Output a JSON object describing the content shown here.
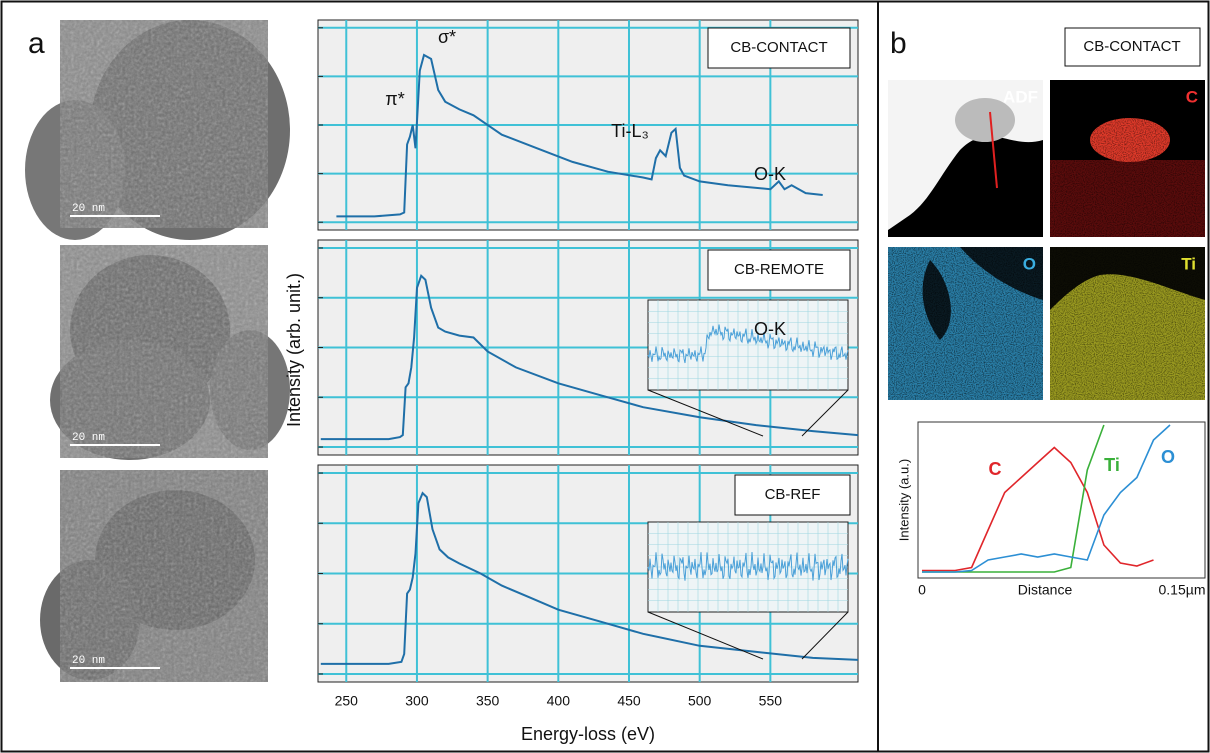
{
  "panel_a": {
    "label": "a",
    "ylabel": "Intensity (arb. unit.)",
    "xlabel": "Energy-loss (eV)",
    "scale_bars": [
      "20 nm",
      "20 nm",
      "20 nm"
    ]
  },
  "panel_b": {
    "label": "b",
    "title": "CB-CONTACT",
    "maps": [
      "ADF",
      "C",
      "O",
      "Ti"
    ]
  },
  "chart_data": [
    {
      "type": "line",
      "label": "CB-CONTACT",
      "color": "#1f6fa8",
      "grid": true,
      "annotations": [
        "π*",
        "σ*",
        "Ti-L₃",
        "O-K"
      ],
      "x": [
        243,
        270,
        288,
        291,
        293,
        295,
        297,
        299,
        302,
        305,
        310,
        315,
        320,
        330,
        340,
        360,
        385,
        410,
        435,
        460,
        466,
        469,
        472,
        476,
        480,
        483,
        486,
        489,
        500,
        520,
        550,
        556,
        560,
        565,
        575,
        587
      ],
      "values": [
        3,
        3,
        4,
        5,
        40,
        44,
        50,
        38,
        78,
        86,
        84,
        68,
        62,
        58,
        55,
        45,
        38,
        31,
        26,
        23,
        22,
        33,
        37,
        34,
        46,
        48,
        28,
        24,
        21,
        19,
        17,
        21,
        17,
        19,
        15,
        14
      ],
      "xlim": [
        230,
        612
      ],
      "xticks": [
        250,
        300,
        350,
        400,
        450,
        500,
        550
      ],
      "ylim": [
        -4,
        104
      ],
      "yticks": [
        0,
        25,
        50,
        75,
        100
      ]
    },
    {
      "type": "line",
      "label": "CB-REMOTE",
      "color": "#1f6fa8",
      "grid": true,
      "inset_label": "O-K",
      "x": [
        232,
        280,
        288,
        290,
        292,
        294,
        296,
        298,
        300,
        303,
        306,
        310,
        315,
        320,
        330,
        340,
        350,
        370,
        400,
        430,
        460,
        500,
        540,
        580,
        612
      ],
      "values": [
        4,
        4,
        5,
        6,
        30,
        32,
        40,
        55,
        80,
        86,
        84,
        70,
        60,
        58,
        56,
        55,
        48,
        40,
        32,
        26,
        20,
        15,
        11,
        8,
        6
      ],
      "xlim": [
        230,
        612
      ],
      "xticks": [
        250,
        300,
        350,
        400,
        450,
        500,
        550
      ],
      "ylim": [
        -4,
        104
      ],
      "yticks": [
        0,
        25,
        50,
        75,
        100
      ]
    },
    {
      "type": "line",
      "label": "CB-REF",
      "color": "#1f6fa8",
      "grid": true,
      "x": [
        232,
        280,
        289,
        291,
        293,
        295,
        297,
        299,
        301,
        304,
        307,
        311,
        316,
        322,
        330,
        345,
        360,
        380,
        400,
        430,
        460,
        500,
        540,
        580,
        612
      ],
      "values": [
        5,
        5,
        6,
        10,
        40,
        42,
        48,
        60,
        85,
        90,
        88,
        72,
        62,
        58,
        55,
        50,
        44,
        38,
        32,
        26,
        20,
        14,
        11,
        8,
        7
      ],
      "xlim": [
        230,
        612
      ],
      "xticks": [
        250,
        300,
        350,
        400,
        450,
        500,
        550
      ],
      "ylim": [
        -4,
        104
      ],
      "yticks": [
        0,
        25,
        50,
        75,
        100
      ]
    },
    {
      "type": "line",
      "xlabel": "Distance",
      "ylabel": "Intensity (a.u.)",
      "x": [
        0,
        0.01,
        0.02,
        0.03,
        0.04,
        0.05,
        0.06,
        0.07,
        0.08,
        0.09,
        0.1,
        0.11,
        0.12,
        0.13,
        0.14,
        0.15
      ],
      "series": [
        {
          "name": "C",
          "color": "#e0262b",
          "values": [
            3,
            3,
            3,
            5,
            30,
            55,
            65,
            75,
            85,
            75,
            55,
            20,
            8,
            6,
            10,
            null
          ]
        },
        {
          "name": "Ti",
          "color": "#3ab03a",
          "values": [
            2,
            2,
            2,
            2,
            2,
            2,
            2,
            2,
            2,
            5,
            70,
            100,
            null,
            null,
            null,
            null
          ]
        },
        {
          "name": "O",
          "color": "#2c8fd4",
          "values": [
            2,
            2,
            2,
            3,
            10,
            12,
            14,
            12,
            14,
            12,
            10,
            40,
            55,
            65,
            90,
            100
          ]
        }
      ],
      "xlim": [
        0,
        0.15
      ],
      "xticks": [
        0,
        {
          "value": 0.15,
          "label": "0.15µm"
        }
      ],
      "ylim": [
        0,
        100
      ]
    }
  ]
}
